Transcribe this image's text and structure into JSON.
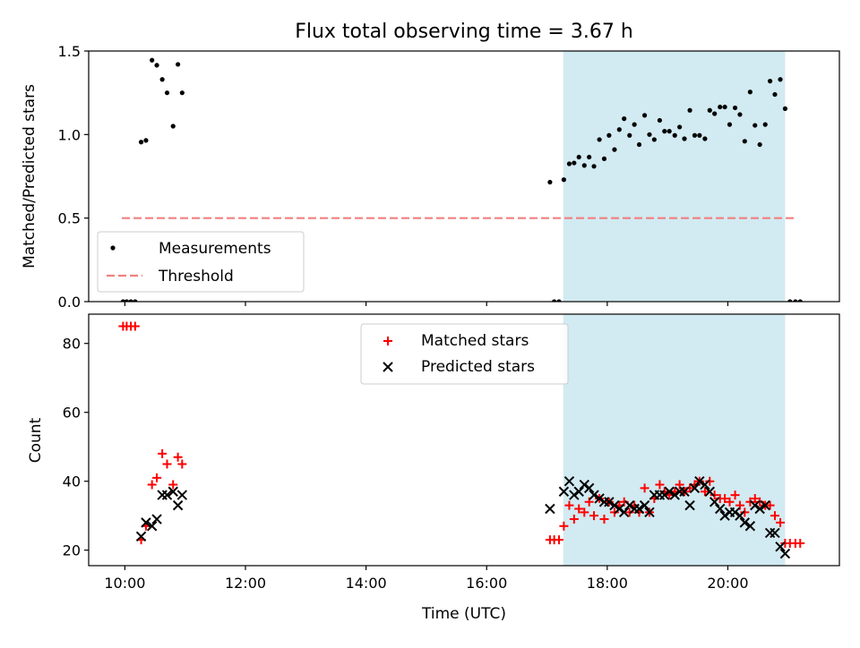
{
  "chart_data": {
    "title": "Flux total observing time = 3.67 h",
    "xlabel": "Time (UTC)",
    "x_unit": "hours UTC",
    "xlim": [
      9.4,
      21.85
    ],
    "x_ticks": [
      10,
      12,
      14,
      16,
      18,
      20
    ],
    "x_tick_labels": [
      "10:00",
      "12:00",
      "14:00",
      "16:00",
      "18:00",
      "20:00"
    ],
    "shaded_region": {
      "x_start": 17.27,
      "x_end": 20.95,
      "color": "#add8e6"
    },
    "colors": {
      "measurement": "#000000",
      "threshold": "#f08080",
      "matched": "#ff0000",
      "predicted": "#000000"
    },
    "panels": [
      {
        "type": "scatter",
        "ylabel": "Matched/Predicted stars",
        "ylim": [
          0,
          1.5
        ],
        "y_ticks": [
          0.0,
          0.5,
          1.0,
          1.5
        ],
        "y_tick_labels": [
          "0.0",
          "0.5",
          "1.0",
          "1.5"
        ],
        "legend": {
          "position": "lower-left",
          "entries": [
            "Measurements",
            "Threshold"
          ]
        },
        "threshold": {
          "value": 0.5,
          "x_start": 9.95,
          "x_end": 21.15
        },
        "series": [
          {
            "name": "Measurements",
            "marker": "dot",
            "points": [
              [
                9.97,
                0
              ],
              [
                10.03,
                0
              ],
              [
                10.1,
                0
              ],
              [
                10.17,
                0
              ],
              [
                10.27,
                0.955
              ],
              [
                10.35,
                0.965
              ],
              [
                10.45,
                1.445
              ],
              [
                10.53,
                1.415
              ],
              [
                10.62,
                1.33
              ],
              [
                10.7,
                1.25
              ],
              [
                10.8,
                1.05
              ],
              [
                10.88,
                1.42
              ],
              [
                10.95,
                1.25
              ],
              [
                17.05,
                0.715
              ],
              [
                17.12,
                0
              ],
              [
                17.2,
                0
              ],
              [
                17.28,
                0.73
              ],
              [
                17.37,
                0.825
              ],
              [
                17.45,
                0.83
              ],
              [
                17.53,
                0.865
              ],
              [
                17.62,
                0.815
              ],
              [
                17.7,
                0.865
              ],
              [
                17.78,
                0.81
              ],
              [
                17.87,
                0.97
              ],
              [
                17.95,
                0.855
              ],
              [
                18.03,
                0.995
              ],
              [
                18.12,
                0.91
              ],
              [
                18.2,
                1.03
              ],
              [
                18.28,
                1.095
              ],
              [
                18.37,
                0.995
              ],
              [
                18.45,
                1.06
              ],
              [
                18.53,
                0.94
              ],
              [
                18.62,
                1.115
              ],
              [
                18.7,
                1.0
              ],
              [
                18.78,
                0.97
              ],
              [
                18.87,
                1.085
              ],
              [
                18.95,
                1.02
              ],
              [
                19.03,
                1.02
              ],
              [
                19.12,
                0.995
              ],
              [
                19.2,
                1.045
              ],
              [
                19.28,
                0.975
              ],
              [
                19.37,
                1.145
              ],
              [
                19.45,
                0.995
              ],
              [
                19.53,
                0.995
              ],
              [
                19.62,
                0.975
              ],
              [
                19.7,
                1.145
              ],
              [
                19.78,
                1.125
              ],
              [
                19.87,
                1.165
              ],
              [
                19.95,
                1.165
              ],
              [
                20.03,
                1.06
              ],
              [
                20.12,
                1.16
              ],
              [
                20.2,
                1.12
              ],
              [
                20.28,
                0.96
              ],
              [
                20.37,
                1.255
              ],
              [
                20.45,
                1.055
              ],
              [
                20.53,
                0.94
              ],
              [
                20.62,
                1.06
              ],
              [
                20.7,
                1.32
              ],
              [
                20.78,
                1.24
              ],
              [
                20.87,
                1.33
              ],
              [
                20.95,
                1.155
              ],
              [
                21.03,
                0
              ],
              [
                21.12,
                0
              ],
              [
                21.2,
                0
              ]
            ]
          }
        ]
      },
      {
        "type": "scatter",
        "ylabel": "Count",
        "ylim": [
          15.5,
          88.5
        ],
        "y_ticks": [
          20,
          40,
          60,
          80
        ],
        "y_tick_labels": [
          "20",
          "40",
          "60",
          "80"
        ],
        "legend": {
          "position": "top-center",
          "entries": [
            "Matched stars",
            "Predicted stars"
          ]
        },
        "series": [
          {
            "name": "Matched stars",
            "marker": "plus",
            "points": [
              [
                9.97,
                85
              ],
              [
                10.03,
                85
              ],
              [
                10.1,
                85
              ],
              [
                10.17,
                85
              ],
              [
                10.27,
                23
              ],
              [
                10.35,
                27
              ],
              [
                10.45,
                39
              ],
              [
                10.53,
                41
              ],
              [
                10.62,
                48
              ],
              [
                10.7,
                45
              ],
              [
                10.8,
                39
              ],
              [
                10.88,
                47
              ],
              [
                10.95,
                45
              ],
              [
                17.05,
                23
              ],
              [
                17.12,
                23
              ],
              [
                17.2,
                23
              ],
              [
                17.28,
                27
              ],
              [
                17.37,
                33
              ],
              [
                17.45,
                29
              ],
              [
                17.53,
                32
              ],
              [
                17.62,
                31
              ],
              [
                17.7,
                34
              ],
              [
                17.78,
                30
              ],
              [
                17.87,
                35
              ],
              [
                17.95,
                29
              ],
              [
                18.03,
                34
              ],
              [
                18.12,
                31
              ],
              [
                18.2,
                33
              ],
              [
                18.28,
                34
              ],
              [
                18.37,
                31
              ],
              [
                18.45,
                33
              ],
              [
                18.53,
                31
              ],
              [
                18.62,
                38
              ],
              [
                18.7,
                31
              ],
              [
                18.78,
                35
              ],
              [
                18.87,
                39
              ],
              [
                18.95,
                37
              ],
              [
                19.03,
                36
              ],
              [
                19.12,
                37
              ],
              [
                19.2,
                39
              ],
              [
                19.28,
                37
              ],
              [
                19.37,
                38
              ],
              [
                19.45,
                39
              ],
              [
                19.53,
                40
              ],
              [
                19.62,
                37
              ],
              [
                19.7,
                40
              ],
              [
                19.78,
                36
              ],
              [
                19.87,
                35
              ],
              [
                19.95,
                35
              ],
              [
                20.03,
                34
              ],
              [
                20.12,
                36
              ],
              [
                20.2,
                33
              ],
              [
                20.28,
                31
              ],
              [
                20.37,
                34
              ],
              [
                20.45,
                35
              ],
              [
                20.53,
                34
              ],
              [
                20.62,
                33
              ],
              [
                20.7,
                33
              ],
              [
                20.78,
                30
              ],
              [
                20.87,
                28
              ],
              [
                20.95,
                22
              ],
              [
                21.03,
                22
              ],
              [
                21.12,
                22
              ],
              [
                21.2,
                22
              ]
            ]
          },
          {
            "name": "Predicted stars",
            "marker": "x",
            "points": [
              [
                10.27,
                24
              ],
              [
                10.35,
                28
              ],
              [
                10.45,
                27
              ],
              [
                10.53,
                29
              ],
              [
                10.62,
                36
              ],
              [
                10.7,
                36
              ],
              [
                10.8,
                37
              ],
              [
                10.88,
                33
              ],
              [
                10.95,
                36
              ],
              [
                17.05,
                32
              ],
              [
                17.28,
                37
              ],
              [
                17.37,
                40
              ],
              [
                17.45,
                36
              ],
              [
                17.53,
                37
              ],
              [
                17.62,
                39
              ],
              [
                17.7,
                38
              ],
              [
                17.78,
                36
              ],
              [
                17.87,
                35
              ],
              [
                17.95,
                34
              ],
              [
                18.03,
                34
              ],
              [
                18.12,
                33
              ],
              [
                18.2,
                32
              ],
              [
                18.28,
                31
              ],
              [
                18.37,
                33
              ],
              [
                18.45,
                32
              ],
              [
                18.53,
                32
              ],
              [
                18.62,
                33
              ],
              [
                18.7,
                31
              ],
              [
                18.78,
                36
              ],
              [
                18.87,
                36
              ],
              [
                18.95,
                36
              ],
              [
                19.03,
                37
              ],
              [
                19.12,
                36
              ],
              [
                19.2,
                37
              ],
              [
                19.28,
                37
              ],
              [
                19.37,
                33
              ],
              [
                19.45,
                38
              ],
              [
                19.53,
                40
              ],
              [
                19.62,
                39
              ],
              [
                19.7,
                37
              ],
              [
                19.78,
                34
              ],
              [
                19.87,
                32
              ],
              [
                19.95,
                30
              ],
              [
                20.03,
                31
              ],
              [
                20.12,
                31
              ],
              [
                20.2,
                30
              ],
              [
                20.28,
                28
              ],
              [
                20.37,
                27
              ],
              [
                20.45,
                33
              ],
              [
                20.53,
                32
              ],
              [
                20.62,
                33
              ],
              [
                20.7,
                25
              ],
              [
                20.78,
                25
              ],
              [
                20.87,
                21
              ],
              [
                20.95,
                19
              ]
            ]
          }
        ]
      }
    ]
  }
}
